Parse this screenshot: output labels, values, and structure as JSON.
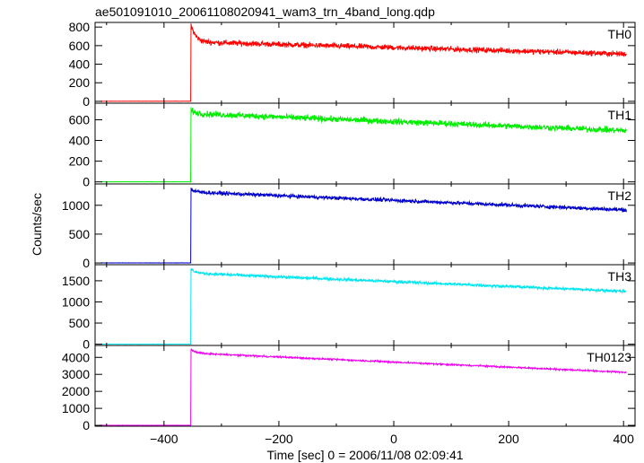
{
  "chart_data": {
    "type": "line",
    "title": "ae501091010_20061108020941_wam3_trn_4band_long.qdp",
    "xlabel": "Time [sec] 0 = 2006/11/08 02:09:41",
    "ylabel": "Counts/sec",
    "xlim": [
      -520,
      420
    ],
    "xticks": [
      -400,
      -200,
      0,
      200,
      400
    ],
    "trigger_time": -353,
    "data_start": -510,
    "data_end": 405,
    "panels": [
      {
        "name": "TH0",
        "color": "#ff0000",
        "ylim": [
          -20,
          850
        ],
        "yticks": [
          0,
          200,
          400,
          600,
          800
        ],
        "pre_level": 0,
        "peak": 830,
        "settle": 640,
        "end_level": 510,
        "noise": 25
      },
      {
        "name": "TH1",
        "color": "#00ee00",
        "ylim": [
          -20,
          760
        ],
        "yticks": [
          0,
          200,
          400,
          600
        ],
        "pre_level": 0,
        "peak": 690,
        "settle": 660,
        "end_level": 495,
        "noise": 25
      },
      {
        "name": "TH2",
        "color": "#0000cc",
        "ylim": [
          -30,
          1370
        ],
        "yticks": [
          0,
          500,
          1000
        ],
        "pre_level": 0,
        "peak": 1280,
        "settle": 1230,
        "end_level": 920,
        "noise": 28
      },
      {
        "name": "TH3",
        "color": "#00e5ee",
        "ylim": [
          -30,
          1880
        ],
        "yticks": [
          0,
          500,
          1000,
          1500
        ],
        "pre_level": 0,
        "peak": 1780,
        "settle": 1680,
        "end_level": 1250,
        "noise": 30
      },
      {
        "name": "TH0123",
        "color": "#ee00ee",
        "ylim": [
          -50,
          4700
        ],
        "yticks": [
          0,
          1000,
          2000,
          3000,
          4000
        ],
        "pre_level": 0,
        "peak": 4480,
        "settle": 4250,
        "end_level": 3120,
        "noise": 40
      }
    ]
  }
}
